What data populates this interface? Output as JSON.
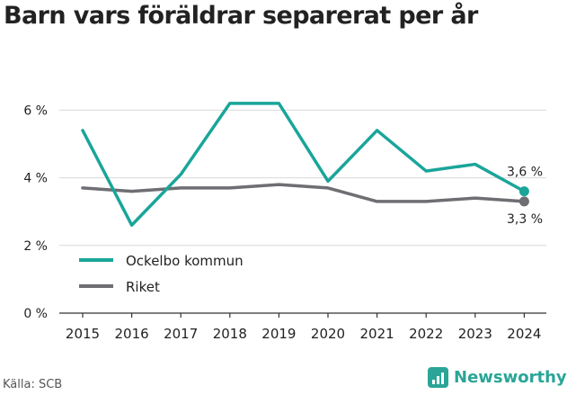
{
  "title": "Barn vars föräldrar separerat per år",
  "source": "Källa: SCB",
  "brand": {
    "name": "Newsworthy",
    "icon": "bar-chart-logo-icon"
  },
  "colors": {
    "ockelbo": "#1aa59a",
    "riket": "#6e6e73",
    "grid": "#d9d9d9",
    "axis": "#333333",
    "text": "#222222",
    "brand": "#2aa597"
  },
  "chart_data": {
    "type": "line",
    "title": "Barn vars föräldrar separerat per år",
    "x": [
      "2015",
      "2016",
      "2017",
      "2018",
      "2019",
      "2020",
      "2021",
      "2022",
      "2023",
      "2024"
    ],
    "series": [
      {
        "name": "Ockelbo kommun",
        "values": [
          5.4,
          2.6,
          4.1,
          6.2,
          6.2,
          3.9,
          5.4,
          4.2,
          4.4,
          3.6
        ],
        "end_label": "3,6 %"
      },
      {
        "name": "Riket",
        "values": [
          3.7,
          3.6,
          3.7,
          3.7,
          3.8,
          3.7,
          3.3,
          3.3,
          3.4,
          3.3
        ],
        "end_label": "3,3 %"
      }
    ],
    "ylim": [
      0,
      6.6
    ],
    "yticks": [
      0,
      2,
      4,
      6
    ],
    "ytick_labels": [
      "0 %",
      "2 %",
      "4 %",
      "6 %"
    ],
    "grid": true,
    "legend": "bottom-left"
  }
}
